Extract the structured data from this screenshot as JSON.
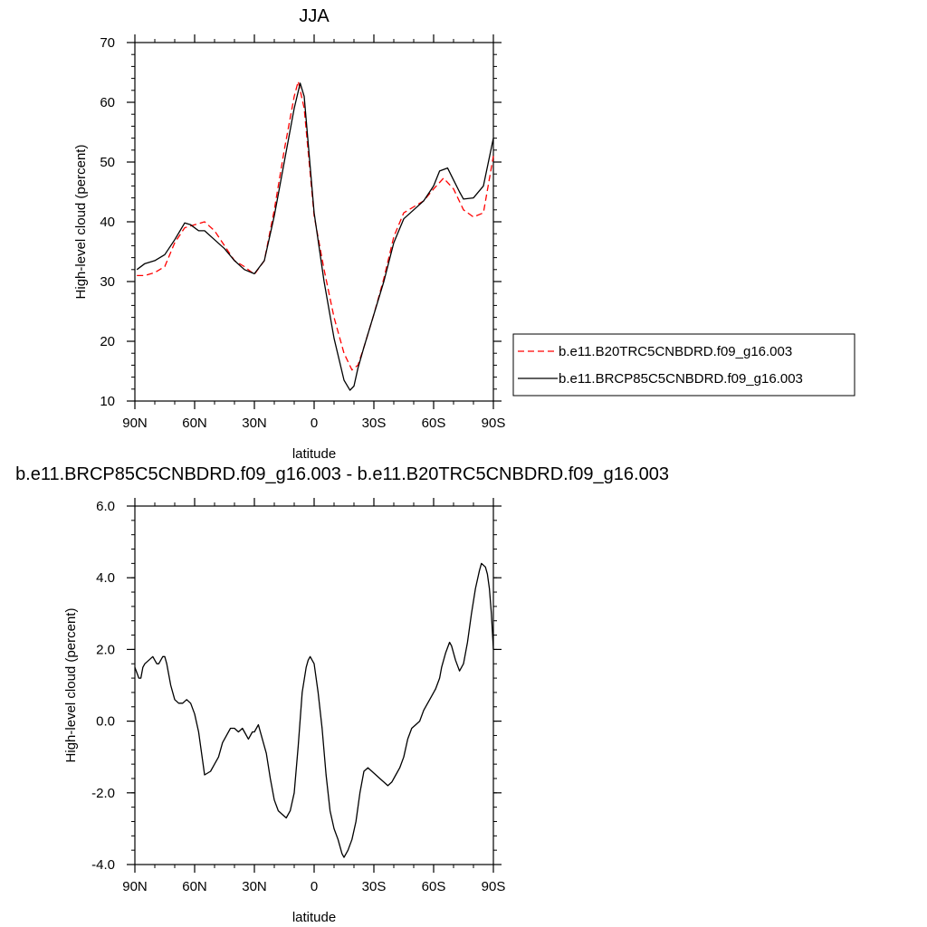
{
  "chart_data": [
    {
      "type": "line",
      "title": "JJA",
      "xlabel": "latitude",
      "ylabel": "High-level cloud (percent)",
      "xlim": [
        -90,
        90
      ],
      "ylim": [
        10,
        70
      ],
      "xticks": [
        -90,
        -60,
        -30,
        0,
        30,
        60,
        90
      ],
      "xtick_labels": [
        "90N",
        "60N",
        "30N",
        "0",
        "30S",
        "60S",
        "90S"
      ],
      "yticks": [
        10,
        20,
        30,
        40,
        50,
        60,
        70
      ],
      "ytick_labels": [
        "10",
        "20",
        "30",
        "40",
        "50",
        "60",
        "70"
      ],
      "legend": "right",
      "grid": false,
      "series": [
        {
          "name": "b.e11.B20TRC5CNBDRD.f09_g16.003",
          "color": "#ff0000",
          "style": "dashed",
          "x": [
            -89,
            -85,
            -80,
            -75,
            -70,
            -65,
            -60,
            -55,
            -50,
            -45,
            -40,
            -35,
            -30,
            -25,
            -20,
            -15,
            -10,
            -8,
            -5,
            0,
            5,
            10,
            15,
            19,
            22,
            25,
            30,
            35,
            40,
            45,
            50,
            55,
            60,
            65,
            70,
            75,
            80,
            85,
            90
          ],
          "y": [
            31.0,
            31.0,
            31.5,
            32.5,
            36.5,
            39.0,
            39.5,
            40.0,
            38.5,
            36.0,
            33.5,
            32.5,
            31.2,
            33.5,
            42.0,
            52.0,
            61.0,
            63.5,
            59.0,
            41.0,
            32.0,
            24.0,
            18.0,
            15.2,
            16.0,
            19.0,
            24.5,
            30.5,
            37.5,
            41.5,
            42.5,
            43.5,
            45.5,
            47.3,
            45.5,
            42.0,
            40.8,
            41.5,
            51.0
          ]
        },
        {
          "name": "b.e11.BRCP85C5CNBDRD.f09_g16.003",
          "color": "#000000",
          "style": "solid",
          "x": [
            -89,
            -85,
            -80,
            -75,
            -70,
            -65,
            -62,
            -58,
            -55,
            -50,
            -45,
            -40,
            -35,
            -30,
            -25,
            -20,
            -15,
            -10,
            -7,
            -5,
            0,
            5,
            10,
            15,
            18,
            20,
            22,
            25,
            30,
            35,
            40,
            45,
            50,
            55,
            60,
            63,
            67,
            70,
            73,
            75,
            80,
            85,
            90
          ],
          "y": [
            32.0,
            33.0,
            33.5,
            34.5,
            37.0,
            39.8,
            39.5,
            38.5,
            38.5,
            37.0,
            35.5,
            33.5,
            32.0,
            31.3,
            33.5,
            41.0,
            50.0,
            59.0,
            63.2,
            61.0,
            41.5,
            30.0,
            20.5,
            13.5,
            11.8,
            12.5,
            15.5,
            19.0,
            24.5,
            30.0,
            36.5,
            40.5,
            42.0,
            43.5,
            46.0,
            48.5,
            49.0,
            47.0,
            45.0,
            43.8,
            44.0,
            46.0,
            54.0
          ]
        }
      ]
    },
    {
      "type": "line",
      "title": "b.e11.BRCP85C5CNBDRD.f09_g16.003 - b.e11.B20TRC5CNBDRD.f09_g16.003",
      "xlabel": "latitude",
      "ylabel": "High-level cloud (percent)",
      "xlim": [
        -90,
        90
      ],
      "ylim": [
        -4.0,
        6.0
      ],
      "xticks": [
        -90,
        -60,
        -30,
        0,
        30,
        60,
        90
      ],
      "xtick_labels": [
        "90N",
        "60N",
        "30N",
        "0",
        "30S",
        "60S",
        "90S"
      ],
      "yticks": [
        -4.0,
        -2.0,
        0.0,
        2.0,
        4.0,
        6.0
      ],
      "ytick_labels": [
        "-4.0",
        "-2.0",
        "0.0",
        "2.0",
        "4.0",
        "6.0"
      ],
      "grid": false,
      "series": [
        {
          "color": "#000000",
          "style": "solid",
          "x": [
            -90,
            -88,
            -87,
            -86,
            -85,
            -83,
            -81,
            -80,
            -79,
            -78,
            -76,
            -75,
            -74,
            -72,
            -70,
            -68,
            -66,
            -64,
            -62,
            -60,
            -58,
            -56,
            -55,
            -52,
            -50,
            -48,
            -46,
            -44,
            -42,
            -40,
            -38,
            -36,
            -35,
            -33,
            -31,
            -30,
            -28,
            -26,
            -24,
            -22,
            -20,
            -18,
            -16,
            -14,
            -12,
            -10,
            -8,
            -6,
            -4,
            -3,
            -2,
            0,
            2,
            4,
            6,
            8,
            10,
            12,
            14,
            15,
            17,
            19,
            21,
            23,
            25,
            27,
            29,
            31,
            33,
            35,
            37,
            39,
            41,
            43,
            45,
            47,
            49,
            51,
            53,
            55,
            57,
            59,
            61,
            63,
            64,
            66,
            68,
            69,
            71,
            73,
            75,
            77,
            79,
            81,
            83,
            84,
            86,
            87,
            88,
            89,
            90
          ],
          "y": [
            1.5,
            1.2,
            1.2,
            1.5,
            1.6,
            1.7,
            1.8,
            1.7,
            1.6,
            1.6,
            1.8,
            1.8,
            1.6,
            1.0,
            0.6,
            0.5,
            0.5,
            0.6,
            0.5,
            0.2,
            -0.3,
            -1.1,
            -1.5,
            -1.4,
            -1.2,
            -1.0,
            -0.6,
            -0.4,
            -0.2,
            -0.2,
            -0.3,
            -0.2,
            -0.3,
            -0.5,
            -0.3,
            -0.3,
            -0.1,
            -0.5,
            -0.9,
            -1.6,
            -2.2,
            -2.5,
            -2.6,
            -2.7,
            -2.5,
            -2.0,
            -0.7,
            0.8,
            1.5,
            1.7,
            1.8,
            1.6,
            0.8,
            -0.2,
            -1.5,
            -2.5,
            -3.0,
            -3.3,
            -3.7,
            -3.8,
            -3.6,
            -3.3,
            -2.8,
            -2.0,
            -1.4,
            -1.3,
            -1.4,
            -1.5,
            -1.6,
            -1.7,
            -1.8,
            -1.7,
            -1.5,
            -1.3,
            -1.0,
            -0.5,
            -0.2,
            -0.1,
            0.0,
            0.3,
            0.5,
            0.7,
            0.9,
            1.2,
            1.5,
            1.9,
            2.2,
            2.1,
            1.7,
            1.4,
            1.6,
            2.2,
            3.0,
            3.7,
            4.2,
            4.4,
            4.3,
            4.1,
            3.7,
            3.0,
            2.0
          ]
        }
      ]
    }
  ]
}
